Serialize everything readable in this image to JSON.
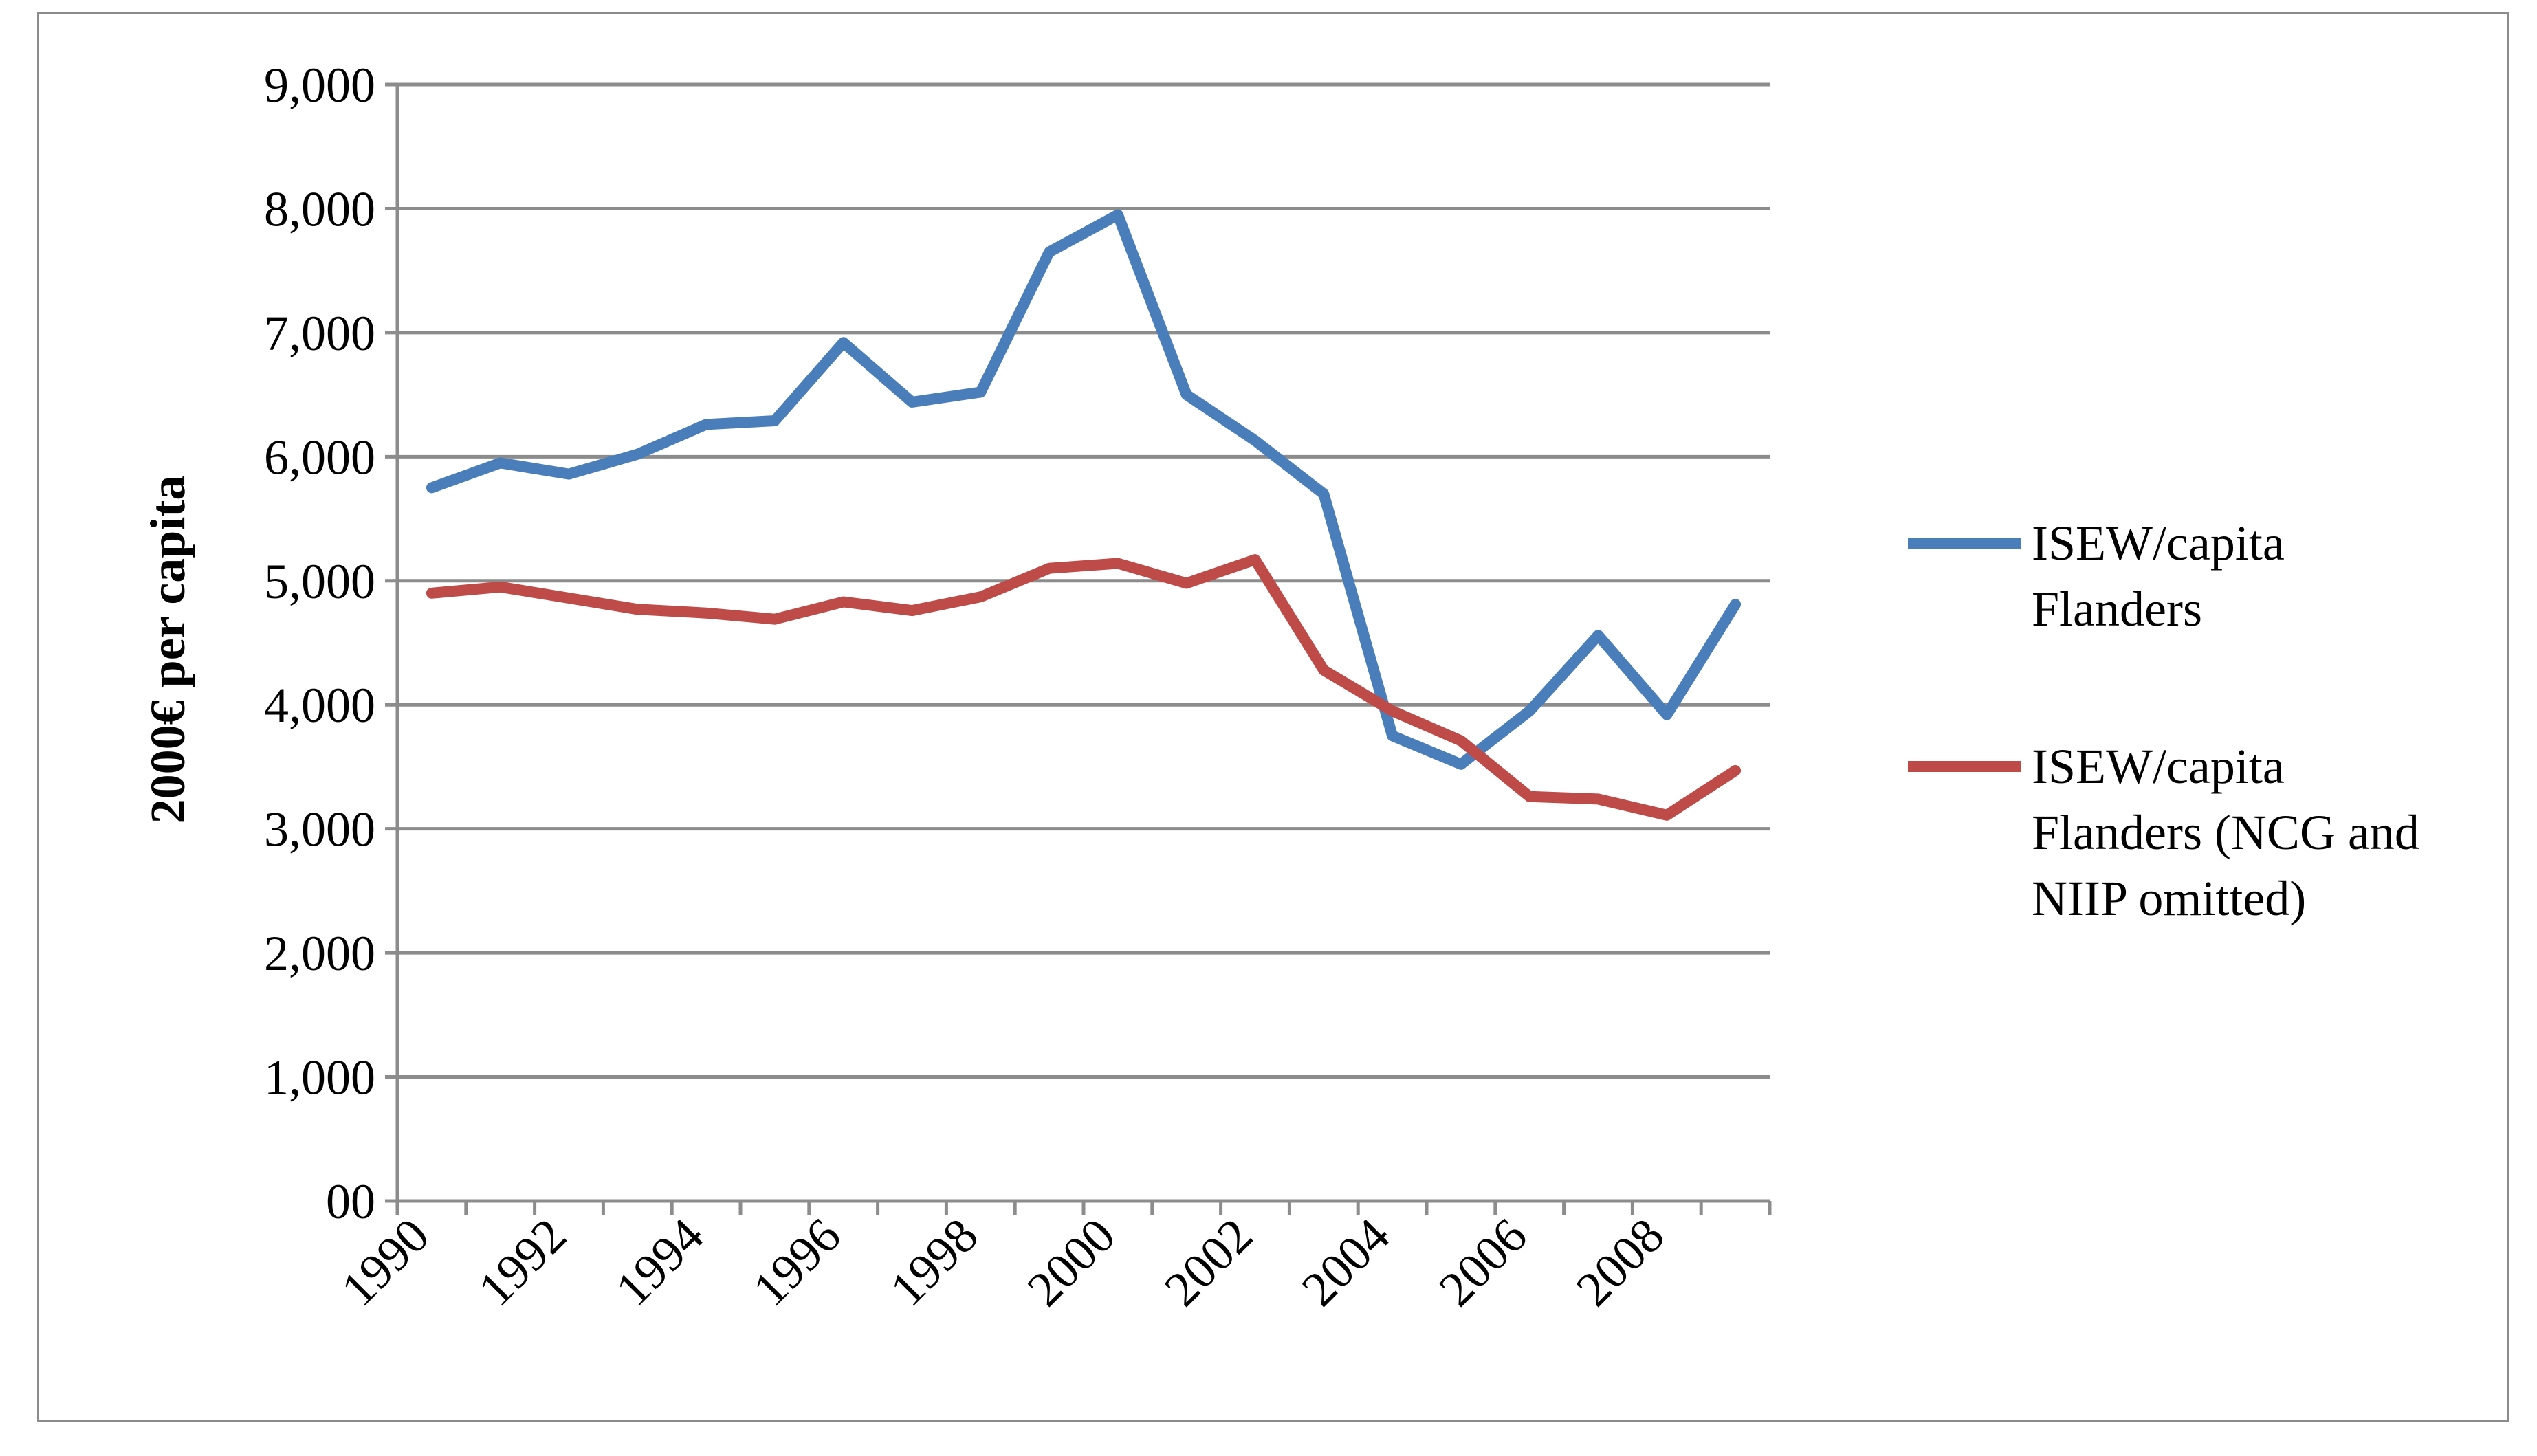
{
  "chart_data": {
    "type": "line",
    "title": "",
    "xlabel": "",
    "ylabel": "2000€ per capita",
    "ylim": [
      0,
      9000
    ],
    "yticks": [
      "00",
      "1,000",
      "2,000",
      "3,000",
      "4,000",
      "5,000",
      "6,000",
      "7,000",
      "8,000",
      "9,000"
    ],
    "xtick_labels": [
      "1990",
      "1992",
      "1994",
      "1996",
      "1998",
      "2000",
      "2002",
      "2004",
      "2006",
      "2008"
    ],
    "x": [
      1990,
      1991,
      1992,
      1993,
      1994,
      1995,
      1996,
      1997,
      1998,
      1999,
      2000,
      2001,
      2002,
      2003,
      2004,
      2005,
      2006,
      2007,
      2008,
      2009
    ],
    "grid": true,
    "legend_position": "right",
    "series": [
      {
        "name": "ISEW/capita Flanders",
        "name_lines": [
          "ISEW/capita",
          "Flanders"
        ],
        "color": "#4a7ebb",
        "values": [
          5750,
          5950,
          5860,
          6020,
          6260,
          6290,
          6920,
          6440,
          6520,
          7650,
          7950,
          6500,
          6130,
          5700,
          3750,
          3520,
          3950,
          4560,
          3920,
          4810
        ]
      },
      {
        "name": "ISEW/capita Flanders (NCG and NIIP omitted)",
        "name_lines": [
          "ISEW/capita",
          "Flanders (NCG and",
          "NIIP omitted)"
        ],
        "color": "#be4b48",
        "values": [
          4900,
          4950,
          4860,
          4770,
          4740,
          4690,
          4830,
          4760,
          4870,
          5100,
          5140,
          4980,
          5170,
          4280,
          3950,
          3710,
          3260,
          3240,
          3110,
          3470
        ]
      }
    ]
  }
}
